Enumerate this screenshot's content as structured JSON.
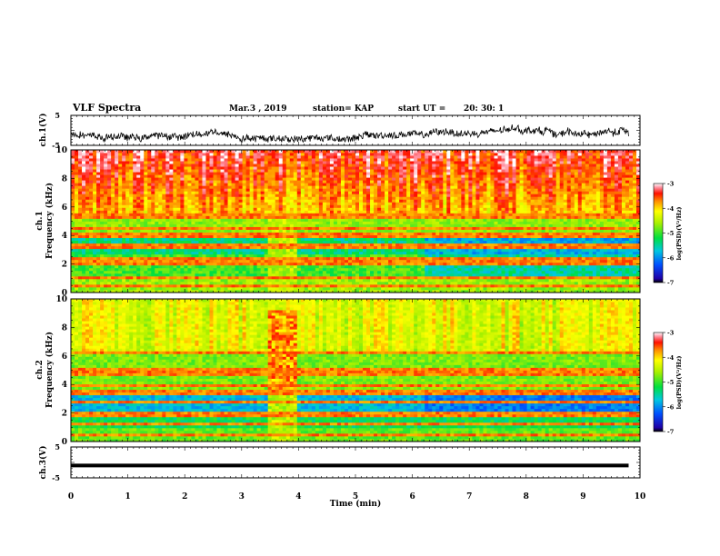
{
  "header": {
    "title": "VLF Spectra",
    "date": "Mar.3  , 2019",
    "station": "station= KAP",
    "start_label": "start  UT  =",
    "start_time": "20: 30: 1"
  },
  "chart_data": [
    {
      "type": "line",
      "name": "ch1-waveform",
      "ylabel": "ch.1(V)",
      "ylim": [
        -5,
        5
      ],
      "yticks": [
        "5",
        "-5"
      ],
      "xlim": [
        0,
        10
      ],
      "description_values": "noisy waveform roughly between -3 and 1 V, extends to ~9.8 min"
    },
    {
      "type": "heatmap",
      "name": "ch1-spectrogram",
      "ylabel": "ch.1\nFrequency (kHz)",
      "ylim": [
        0,
        10
      ],
      "yticks": [
        "0",
        "2",
        "4",
        "6",
        "8",
        "10"
      ],
      "xlim": [
        0,
        10
      ],
      "colorbar": {
        "label": "log(PSD)(V²/Hz)",
        "ticks": [
          "-3",
          "-4",
          "-5",
          "-6",
          "-7"
        ],
        "range": [
          -7,
          -3
        ]
      }
    },
    {
      "type": "heatmap",
      "name": "ch2-spectrogram",
      "ylabel": "ch.2\nFrequency (kHz)",
      "ylim": [
        0,
        10
      ],
      "yticks": [
        "0",
        "2",
        "4",
        "6",
        "8",
        "10"
      ],
      "xlim": [
        0,
        10
      ],
      "colorbar": {
        "label": "log(PSD)(V²/Hz)",
        "ticks": [
          "-3",
          "-4",
          "-5",
          "-6",
          "-7"
        ],
        "range": [
          -7,
          -3
        ]
      }
    },
    {
      "type": "line",
      "name": "ch3-waveform",
      "ylabel": "ch.3(V)",
      "ylim": [
        -5,
        5
      ],
      "yticks": [
        "5",
        "-5"
      ],
      "xlim": [
        0,
        10
      ],
      "x": [
        0,
        9.8
      ],
      "y": [
        -1,
        -1
      ]
    }
  ],
  "xaxis": {
    "label": "Time  (min)",
    "ticks": [
      "0",
      "1",
      "2",
      "3",
      "4",
      "5",
      "6",
      "7",
      "8",
      "9",
      "10"
    ]
  }
}
